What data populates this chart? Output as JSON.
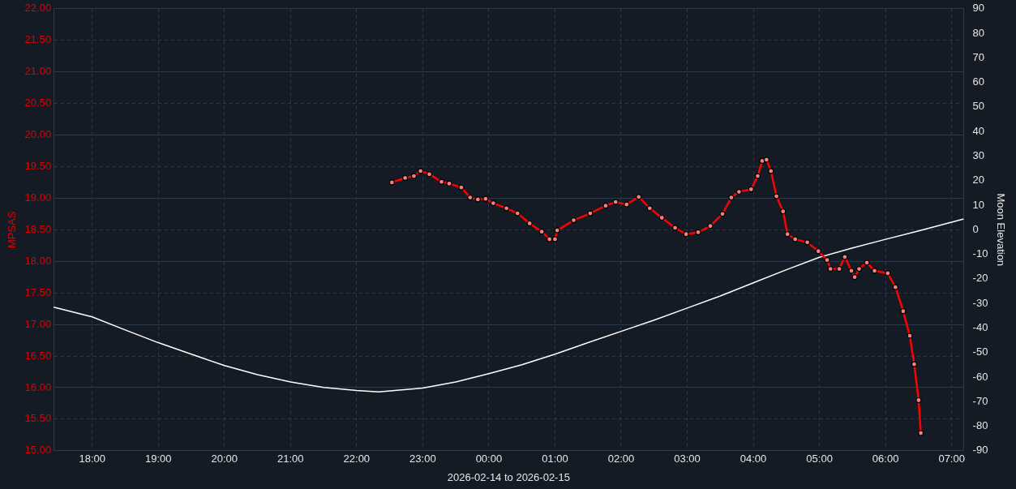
{
  "chart_data": {
    "type": "line",
    "xlabel": "2026-02-14 to 2026-02-15",
    "ylabel": "MPSAS",
    "y2label": "Moon Elevation",
    "xlim": [
      "2026-02-14T17:25",
      "2026-02-15T07:11"
    ],
    "xticks": [
      {
        "value": "2026-02-14T18:00",
        "label": "18:00"
      },
      {
        "value": "2026-02-14T19:00",
        "label": "19:00"
      },
      {
        "value": "2026-02-14T20:00",
        "label": "20:00"
      },
      {
        "value": "2026-02-14T21:00",
        "label": "21:00"
      },
      {
        "value": "2026-02-14T22:00",
        "label": "22:00"
      },
      {
        "value": "2026-02-14T23:00",
        "label": "23:00"
      },
      {
        "value": "2026-02-15T00:00",
        "label": "00:00"
      },
      {
        "value": "2026-02-15T01:00",
        "label": "01:00"
      },
      {
        "value": "2026-02-15T02:00",
        "label": "02:00"
      },
      {
        "value": "2026-02-15T03:00",
        "label": "03:00"
      },
      {
        "value": "2026-02-15T04:00",
        "label": "04:00"
      },
      {
        "value": "2026-02-15T05:00",
        "label": "05:00"
      },
      {
        "value": "2026-02-15T06:00",
        "label": "06:00"
      },
      {
        "value": "2026-02-15T07:00",
        "label": "07:00"
      }
    ],
    "ylim": [
      15,
      22
    ],
    "yticks": [
      {
        "value": 15,
        "label": "15.00"
      },
      {
        "value": 15.5,
        "label": "15.50"
      },
      {
        "value": 16,
        "label": "16.00"
      },
      {
        "value": 16.5,
        "label": "16.50"
      },
      {
        "value": 17,
        "label": "17.00"
      },
      {
        "value": 17.5,
        "label": "17.50"
      },
      {
        "value": 18,
        "label": "18.00"
      },
      {
        "value": 18.5,
        "label": "18.50"
      },
      {
        "value": 19,
        "label": "19.00"
      },
      {
        "value": 19.5,
        "label": "19.50"
      },
      {
        "value": 20,
        "label": "20.00"
      },
      {
        "value": 20.5,
        "label": "20.50"
      },
      {
        "value": 21,
        "label": "21.00"
      },
      {
        "value": 21.5,
        "label": "21.50"
      },
      {
        "value": 22,
        "label": "22.00"
      }
    ],
    "y2lim": [
      -90,
      90
    ],
    "y2ticks": [
      -90,
      -80,
      -70,
      -60,
      -50,
      -40,
      -30,
      -20,
      -10,
      0,
      10,
      20,
      30,
      40,
      50,
      60,
      70,
      80,
      90
    ],
    "grid": true,
    "line_style": "solid",
    "series": [
      {
        "color": "#ff0000",
        "marker": "circle",
        "x": [
          "2026-02-14T22:32",
          "2026-02-14T22:44",
          "2026-02-14T22:52",
          "2026-02-14T22:58",
          "2026-02-14T23:06",
          "2026-02-14T23:17",
          "2026-02-14T23:24",
          "2026-02-14T23:35",
          "2026-02-14T23:43",
          "2026-02-14T23:50",
          "2026-02-14T23:57",
          "2026-02-15T00:04",
          "2026-02-15T00:16",
          "2026-02-15T00:26",
          "2026-02-15T00:37",
          "2026-02-15T00:48",
          "2026-02-15T00:55",
          "2026-02-15T01:00",
          "2026-02-15T01:02",
          "2026-02-15T01:17",
          "2026-02-15T01:32",
          "2026-02-15T01:46",
          "2026-02-15T01:55",
          "2026-02-15T02:05",
          "2026-02-15T02:16",
          "2026-02-15T02:26",
          "2026-02-15T02:37",
          "2026-02-15T02:49",
          "2026-02-15T02:59",
          "2026-02-15T03:10",
          "2026-02-15T03:21",
          "2026-02-15T03:32",
          "2026-02-15T03:40",
          "2026-02-15T03:47",
          "2026-02-15T03:58",
          "2026-02-15T04:04",
          "2026-02-15T04:08",
          "2026-02-15T04:12",
          "2026-02-15T04:16",
          "2026-02-15T04:21",
          "2026-02-15T04:27",
          "2026-02-15T04:31",
          "2026-02-15T04:38",
          "2026-02-15T04:49",
          "2026-02-15T04:59",
          "2026-02-15T05:07",
          "2026-02-15T05:10",
          "2026-02-15T05:18",
          "2026-02-15T05:23",
          "2026-02-15T05:29",
          "2026-02-15T05:32",
          "2026-02-15T05:36",
          "2026-02-15T05:43",
          "2026-02-15T05:50",
          "2026-02-15T06:02",
          "2026-02-15T06:09",
          "2026-02-15T06:16",
          "2026-02-15T06:22",
          "2026-02-15T06:26",
          "2026-02-15T06:30",
          "2026-02-15T06:32"
        ],
        "values": [
          19.25,
          19.32,
          19.35,
          19.43,
          19.38,
          19.26,
          19.23,
          19.17,
          19.01,
          18.98,
          18.99,
          18.92,
          18.84,
          18.76,
          18.6,
          18.47,
          18.35,
          18.35,
          18.49,
          18.65,
          18.76,
          18.88,
          18.94,
          18.9,
          19.02,
          18.84,
          18.69,
          18.53,
          18.43,
          18.46,
          18.56,
          18.75,
          19.01,
          19.1,
          19.14,
          19.35,
          19.59,
          19.61,
          19.43,
          19.03,
          18.79,
          18.43,
          18.35,
          18.3,
          18.16,
          18.02,
          17.88,
          17.88,
          18.07,
          17.85,
          17.75,
          17.88,
          17.98,
          17.85,
          17.81,
          17.59,
          17.21,
          16.82,
          16.37,
          15.8,
          15.28
        ]
      },
      {
        "color": "#ffffff",
        "marker": "none",
        "axis": "y2",
        "x": [
          "2026-02-14T17:25",
          "2026-02-14T18:00",
          "2026-02-14T18:30",
          "2026-02-14T19:00",
          "2026-02-14T19:30",
          "2026-02-14T20:00",
          "2026-02-14T20:30",
          "2026-02-14T21:00",
          "2026-02-14T21:30",
          "2026-02-14T22:00",
          "2026-02-14T22:20",
          "2026-02-14T23:00",
          "2026-02-14T23:30",
          "2026-02-15T00:00",
          "2026-02-15T00:30",
          "2026-02-15T01:00",
          "2026-02-15T01:30",
          "2026-02-15T02:00",
          "2026-02-15T02:30",
          "2026-02-15T03:00",
          "2026-02-15T03:30",
          "2026-02-15T04:00",
          "2026-02-15T04:30",
          "2026-02-15T05:00",
          "2026-02-15T05:30",
          "2026-02-15T06:00",
          "2026-02-15T06:30",
          "2026-02-15T07:11"
        ],
        "values": [
          -31.5,
          -35.5,
          -40.8,
          -46,
          -50.7,
          -55.3,
          -59,
          -62,
          -64.2,
          -65.5,
          -66,
          -64.5,
          -62,
          -58.6,
          -55,
          -50.7,
          -46,
          -41.4,
          -36.8,
          -31.9,
          -27,
          -21.6,
          -16.3,
          -11.2,
          -7.4,
          -3.9,
          -0.5,
          4.4
        ]
      }
    ]
  }
}
